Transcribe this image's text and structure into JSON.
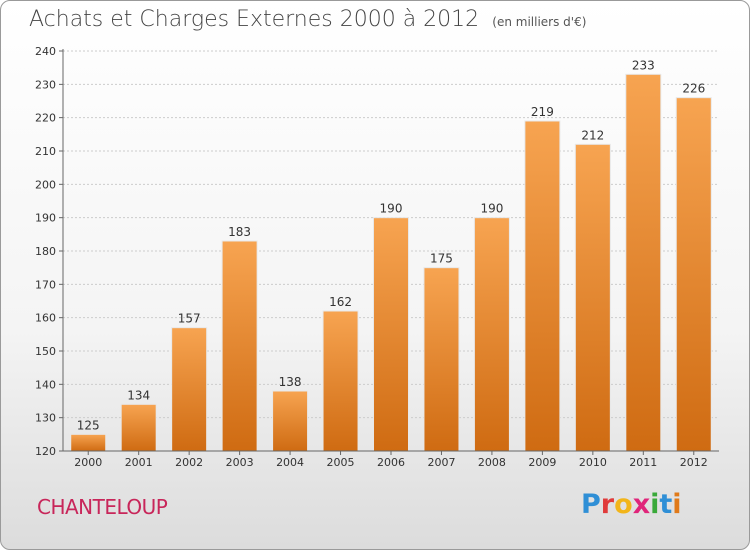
{
  "header": {
    "title": "Achats et Charges Externes 2000 à 2012",
    "unit": "(en milliers d'€)"
  },
  "footer": {
    "commune": "CHANTELOUP",
    "logo_letters": [
      "P",
      "r",
      "o",
      "x",
      "i",
      "t",
      "i"
    ],
    "logo_colors": [
      "#2f8fd6",
      "#e03b3b",
      "#f2b51a",
      "#e0257a",
      "#3aa93a",
      "#2f8fd6",
      "#e07a1a"
    ]
  },
  "colors": {
    "bar_top": "#f7a451",
    "bar_bottom": "#cf6b12",
    "grid": "#cccccc",
    "axis": "#666666"
  },
  "chart_data": {
    "type": "bar",
    "categories": [
      "2000",
      "2001",
      "2002",
      "2003",
      "2004",
      "2005",
      "2006",
      "2007",
      "2008",
      "2009",
      "2010",
      "2011",
      "2012"
    ],
    "values": [
      125,
      134,
      157,
      183,
      138,
      162,
      190,
      175,
      190,
      219,
      212,
      233,
      226
    ],
    "title": "Achats et Charges Externes 2000 à 2012",
    "xlabel": "",
    "ylabel": "",
    "ylim": [
      120,
      240
    ],
    "yticks": [
      120,
      130,
      140,
      150,
      160,
      170,
      180,
      190,
      200,
      210,
      220,
      230,
      240
    ],
    "grid": true,
    "data_labels": true
  }
}
